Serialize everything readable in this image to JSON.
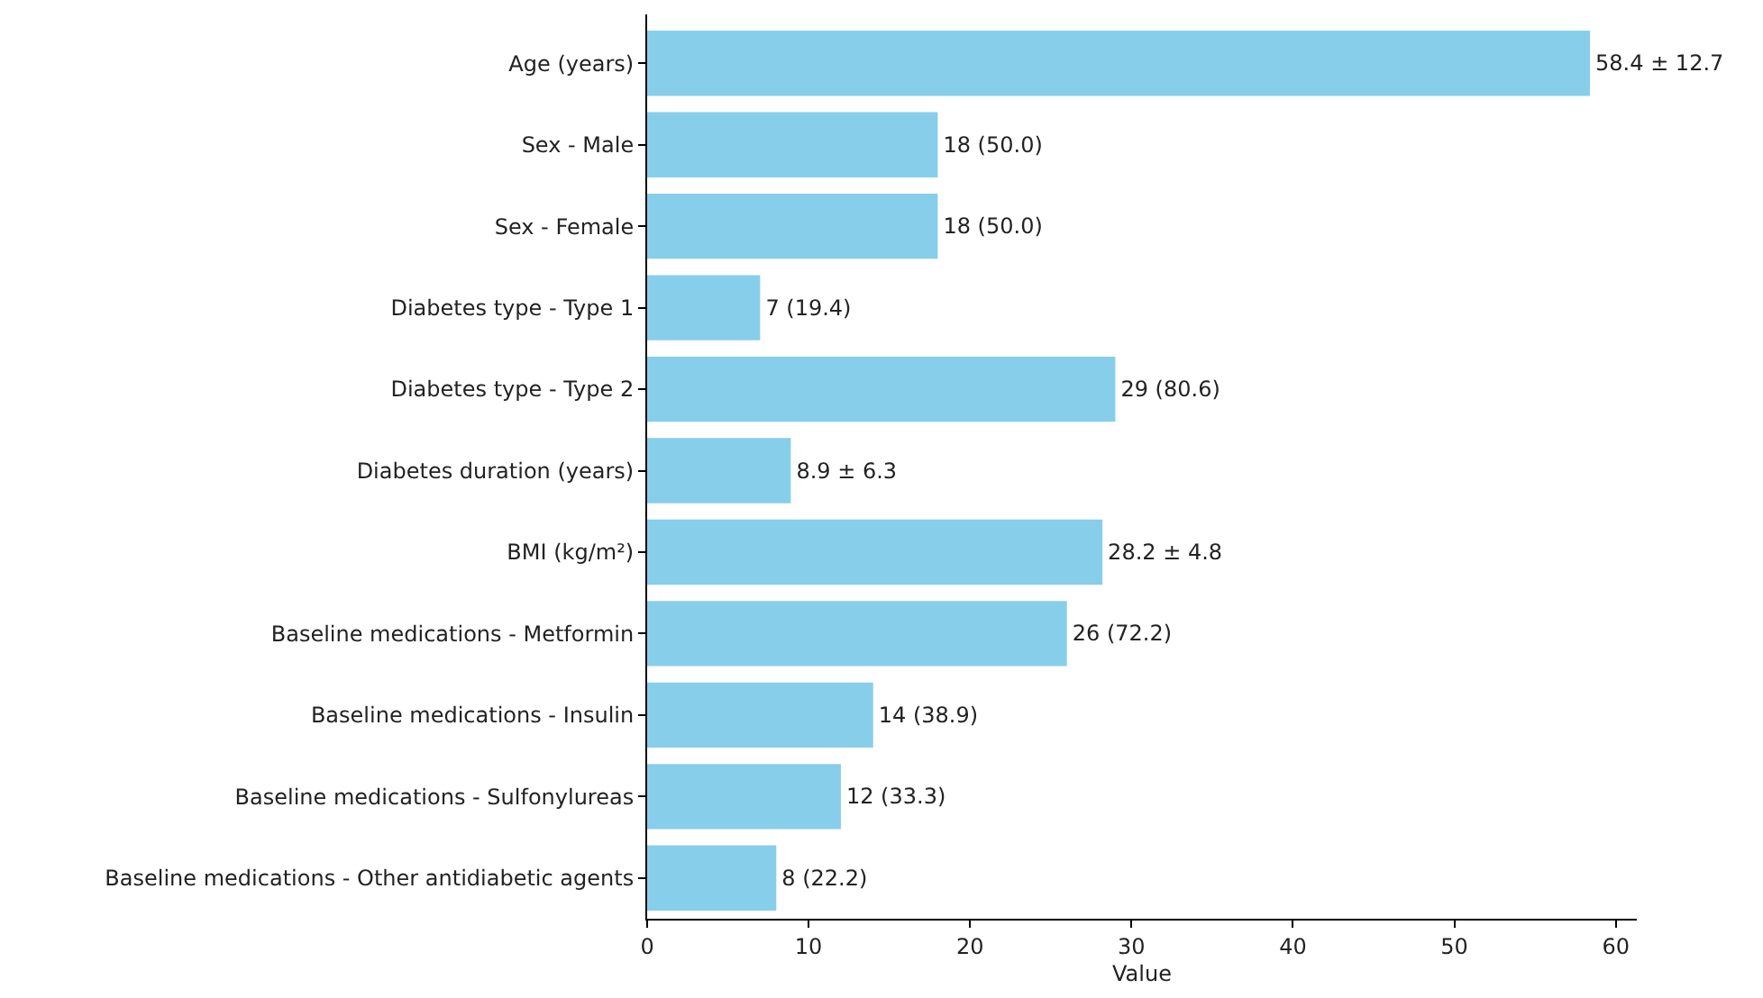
{
  "chart_data": {
    "type": "bar",
    "orientation": "horizontal",
    "xlabel": "Value",
    "categories": [
      "Age (years)",
      "Sex - Male",
      "Sex - Female",
      "Diabetes type - Type 1",
      "Diabetes type - Type 2",
      "Diabetes duration (years)",
      "BMI (kg/m²)",
      "Baseline medications - Metformin",
      "Baseline medications - Insulin",
      "Baseline medications - Sulfonylureas",
      "Baseline medications - Other antidiabetic agents"
    ],
    "values": [
      58.4,
      18,
      18,
      7,
      29,
      8.9,
      28.2,
      26,
      14,
      12,
      8
    ],
    "value_labels": [
      "58.4 ± 12.7",
      "18 (50.0)",
      "18 (50.0)",
      "7 (19.4)",
      "29 (80.6)",
      "8.9 ± 6.3",
      "28.2 ± 4.8",
      "26 (72.2)",
      "14 (38.9)",
      "12 (33.3)",
      "8 (22.2)"
    ],
    "color": "#87ceeb",
    "xlim": [
      0,
      61.3
    ],
    "xticks": [
      0,
      10,
      20,
      30,
      40,
      50,
      60
    ]
  }
}
